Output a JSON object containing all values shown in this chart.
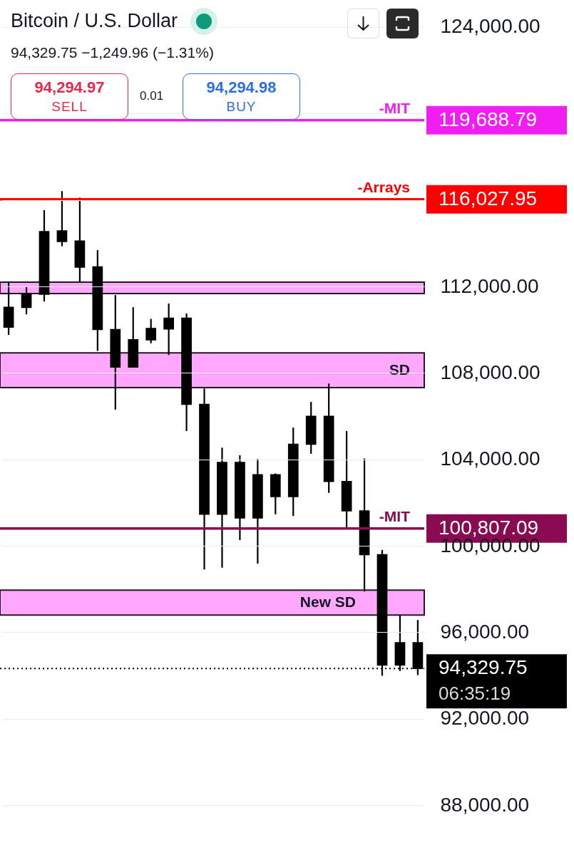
{
  "chart_data": {
    "type": "candlestick",
    "title": "Bitcoin / U.S. Dollar",
    "subtitle": "94,329.75  −1,249.96 (−1.31%)",
    "categories": [
      null,
      null,
      null,
      null,
      null,
      null,
      null,
      null,
      null,
      null,
      null,
      null,
      null,
      null,
      null,
      null,
      null,
      null,
      null,
      null,
      null,
      null,
      null,
      null
    ],
    "color": "#000000",
    "ohlc": [
      [
        111040,
        112170,
        109760,
        110110
      ],
      [
        111650,
        111980,
        110710,
        111030
      ],
      [
        114540,
        115530,
        111300,
        111640
      ],
      [
        114570,
        116410,
        113860,
        114080
      ],
      [
        114100,
        116110,
        112230,
        112890
      ],
      [
        112910,
        113680,
        109020,
        110010
      ],
      [
        110010,
        111600,
        106300,
        108270
      ],
      [
        109540,
        111040,
        108270,
        108270
      ],
      [
        110060,
        110500,
        109370,
        109530
      ],
      [
        110530,
        111210,
        108830,
        110030
      ],
      [
        110530,
        110750,
        105310,
        106550
      ],
      [
        106550,
        107280,
        98910,
        101460
      ],
      [
        103860,
        104540,
        98990,
        101460
      ],
      [
        103860,
        104190,
        100270,
        101290
      ],
      [
        103290,
        104020,
        99180,
        101290
      ],
      [
        103290,
        103350,
        101460,
        102280
      ],
      [
        104700,
        105470,
        101380,
        102280
      ],
      [
        105990,
        106660,
        104260,
        104700
      ],
      [
        105990,
        107510,
        102450,
        102980
      ],
      [
        102980,
        105310,
        100800,
        101620
      ],
      [
        101620,
        104040,
        97890,
        99590
      ],
      [
        99590,
        99810,
        93990,
        94480
      ],
      [
        95520,
        96790,
        94210,
        94480
      ],
      [
        95520,
        96570,
        94020,
        94329.75
      ]
    ],
    "ylim": [
      85700,
      125250
    ],
    "yticks": [
      {
        "value": 88000,
        "label": "88,000.00"
      },
      {
        "value": 92000,
        "label": "92,000.00"
      },
      {
        "value": 96000,
        "label": "96,000.00"
      },
      {
        "value": 100000,
        "label": "100,000.00"
      },
      {
        "value": 104000,
        "label": "104,000.00"
      },
      {
        "value": 108000,
        "label": "108,000.00"
      },
      {
        "value": 112000,
        "label": "112,000.00"
      },
      {
        "value": 116000,
        "label": null
      },
      {
        "value": 120000,
        "label": null
      },
      {
        "value": 124000,
        "label": "124,000.00"
      }
    ],
    "grid": "y",
    "ref_lines": [
      {
        "axis": "y",
        "value": 119688.79,
        "label": "-MIT",
        "color": "#f01ef0",
        "line_style": "solid"
      },
      {
        "axis": "y",
        "value": 116027.95,
        "label": "-Arrays",
        "color": "#ff0000",
        "line_style": "solid"
      },
      {
        "axis": "y",
        "value": 100807.09,
        "label": "-MIT",
        "color": "#8a0b52",
        "line_style": "solid"
      },
      {
        "axis": "y",
        "value": 94329.75,
        "label": null,
        "color": "#000000",
        "line_style": "dotted"
      }
    ],
    "bands": [
      {
        "axis": "y",
        "from": 111670,
        "to": 112200,
        "label": null,
        "color": "#ffa6ff"
      },
      {
        "axis": "y",
        "from": 107320,
        "to": 108930,
        "label": "SD",
        "color": "#ffa6ff"
      },
      {
        "axis": "y",
        "from": 96800,
        "to": 97950,
        "label": "New SD",
        "color": "#ffa6ff"
      }
    ],
    "annotations": [
      "94,294.97",
      "SELL",
      "0.01",
      "94,294.98",
      "BUY",
      "119,688.79",
      "116,027.95",
      "100,807.09",
      "94,329.75",
      "06:35:19"
    ]
  }
}
